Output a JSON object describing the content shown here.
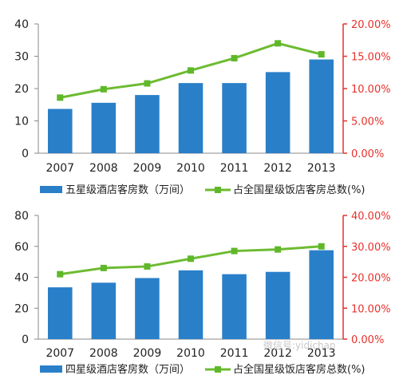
{
  "chart_data": [
    {
      "type": "bar",
      "categories": [
        "2007",
        "2008",
        "2009",
        "2010",
        "2011",
        "2012",
        "2013"
      ],
      "series": [
        {
          "name": "五星级酒店客房数（万间）",
          "type": "bar",
          "axis": "left",
          "values": [
            13.7,
            15.6,
            18.0,
            21.7,
            21.7,
            25.1,
            29.0
          ]
        },
        {
          "name": "占全国星级饭店客房总数(%)",
          "type": "line",
          "axis": "right",
          "values": [
            8.6,
            9.9,
            10.8,
            12.8,
            14.7,
            17.0,
            15.3
          ]
        }
      ],
      "yticks_left": [
        "0",
        "10",
        "20",
        "30",
        "40"
      ],
      "yticks_right": [
        "0.00%",
        "5.00%",
        "10.00%",
        "15.00%",
        "20.00%"
      ],
      "ylim_left": [
        0,
        40
      ],
      "ylim_right": [
        0,
        20
      ],
      "legend_position": "bottom",
      "grid": false
    },
    {
      "type": "bar",
      "categories": [
        "2007",
        "2008",
        "2009",
        "2010",
        "2011",
        "2012",
        "2013"
      ],
      "series": [
        {
          "name": "四星级酒店客房数（万间）",
          "type": "bar",
          "axis": "left",
          "values": [
            33.5,
            36.5,
            39.5,
            44.5,
            42.0,
            43.5,
            57.5
          ]
        },
        {
          "name": "占全国星级饭店客房总数(%)",
          "type": "line",
          "axis": "right",
          "values": [
            21.0,
            23.0,
            23.5,
            26.0,
            28.5,
            29.0,
            30.0
          ]
        }
      ],
      "yticks_left": [
        "0",
        "20",
        "40",
        "60",
        "80"
      ],
      "yticks_right": [
        "0.00%",
        "10.00%",
        "20.00%",
        "30.00%",
        "40.00%"
      ],
      "ylim_left": [
        0,
        80
      ],
      "ylim_right": [
        0,
        40
      ],
      "legend_position": "bottom",
      "grid": false
    }
  ],
  "colors": {
    "bar": "#2a7fc9",
    "line": "#6dbb31",
    "marker": "#5fb82a",
    "right_axis": "#e8302a",
    "left_axis": "#222222"
  },
  "watermark": "微信号:yidichan"
}
